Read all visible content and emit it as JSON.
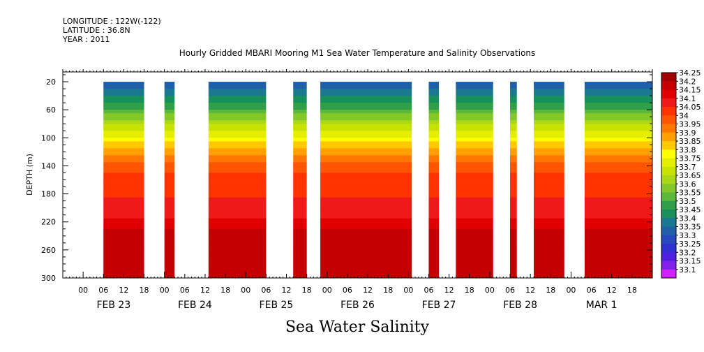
{
  "header": {
    "longitude": "LONGITUDE : 122W(-122)",
    "latitude": "LATITUDE : 36.8N",
    "year": "YEAR : 2011"
  },
  "chart_data": {
    "type": "heatmap",
    "title": "Hourly Gridded MBARI Mooring M1 Sea Water Temperature and Salinity Observations",
    "xlabel": "Sea Water Salinity",
    "ylabel": "DEPTH (m)",
    "xlim_hours": [
      -6,
      168
    ],
    "ylim": [
      300,
      6
    ],
    "y_ticks": [
      20,
      60,
      100,
      140,
      180,
      220,
      260,
      300
    ],
    "x_hour_ticks": [
      0,
      6,
      12,
      18
    ],
    "x_hour_tick_labels": [
      "00",
      "06",
      "12",
      "18"
    ],
    "day_labels": [
      "FEB 23",
      "FEB 24",
      "FEB 25",
      "FEB 26",
      "FEB 27",
      "FEB 28",
      "MAR  1"
    ],
    "data_segments_hours": [
      [
        6,
        18
      ],
      [
        24,
        27
      ],
      [
        37,
        54
      ],
      [
        62,
        66
      ],
      [
        70,
        97
      ],
      [
        102,
        105
      ],
      [
        110,
        121
      ],
      [
        126,
        128
      ],
      [
        133,
        142
      ],
      [
        148,
        168
      ]
    ],
    "data_top_depth": 20,
    "colorbar_levels": [
      "34.25",
      "34.2",
      "34.15",
      "34.1",
      "34.05",
      "34",
      "33.95",
      "33.9",
      "33.85",
      "33.8",
      "33.75",
      "33.7",
      "33.65",
      "33.6",
      "33.55",
      "33.5",
      "33.45",
      "33.4",
      "33.35",
      "33.3",
      "33.25",
      "33.2",
      "33.15",
      "33.1"
    ],
    "colorbar_colors": [
      "#a00000",
      "#c40000",
      "#e00000",
      "#f01818",
      "#ff3300",
      "#ff5500",
      "#ff7700",
      "#ffa000",
      "#ffc800",
      "#ffff00",
      "#e6ee00",
      "#c8e200",
      "#a8d818",
      "#84c828",
      "#5cb838",
      "#30a048",
      "#18905c",
      "#1c7890",
      "#2060a8",
      "#2848c0",
      "#3030d0",
      "#5020e0",
      "#8020e8",
      "#d020ff"
    ],
    "salinity_profile": [
      {
        "depth": 20,
        "value": 33.32
      },
      {
        "depth": 35,
        "value": 33.36
      },
      {
        "depth": 50,
        "value": 33.44
      },
      {
        "depth": 65,
        "value": 33.55
      },
      {
        "depth": 80,
        "value": 33.64
      },
      {
        "depth": 95,
        "value": 33.73
      },
      {
        "depth": 110,
        "value": 33.82
      },
      {
        "depth": 125,
        "value": 33.9
      },
      {
        "depth": 140,
        "value": 33.97
      },
      {
        "depth": 160,
        "value": 34.02
      },
      {
        "depth": 180,
        "value": 34.04
      },
      {
        "depth": 200,
        "value": 34.07
      },
      {
        "depth": 220,
        "value": 34.11
      },
      {
        "depth": 235,
        "value": 34.16
      },
      {
        "depth": 250,
        "value": 34.2
      },
      {
        "depth": 265,
        "value": 34.19
      },
      {
        "depth": 285,
        "value": 34.16
      },
      {
        "depth": 300,
        "value": 34.2
      }
    ]
  }
}
